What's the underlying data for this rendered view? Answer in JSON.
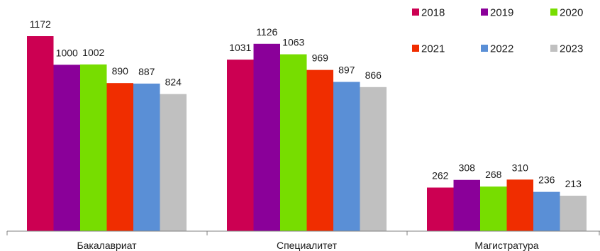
{
  "chart_data": {
    "type": "bar",
    "title": "",
    "xlabel": "",
    "ylabel": "",
    "categories": [
      "Бакалавриат",
      "Специалитет",
      "Магистратура"
    ],
    "ylim": [
      0,
      1172
    ],
    "grid": false,
    "legend_placement": "top-right",
    "series": [
      {
        "name": "2018",
        "color": "#cc0052",
        "values": [
          1172,
          1031,
          262
        ]
      },
      {
        "name": "2019",
        "color": "#8a0099",
        "values": [
          1000,
          1126,
          308
        ]
      },
      {
        "name": "2020",
        "color": "#77dd00",
        "values": [
          1002,
          1063,
          268
        ]
      },
      {
        "name": "2021",
        "color": "#f02d00",
        "values": [
          890,
          969,
          310
        ]
      },
      {
        "name": "2022",
        "color": "#5a8fd6",
        "values": [
          887,
          897,
          236
        ]
      },
      {
        "name": "2023",
        "color": "#c0c0c0",
        "values": [
          824,
          866,
          213
        ]
      }
    ]
  }
}
